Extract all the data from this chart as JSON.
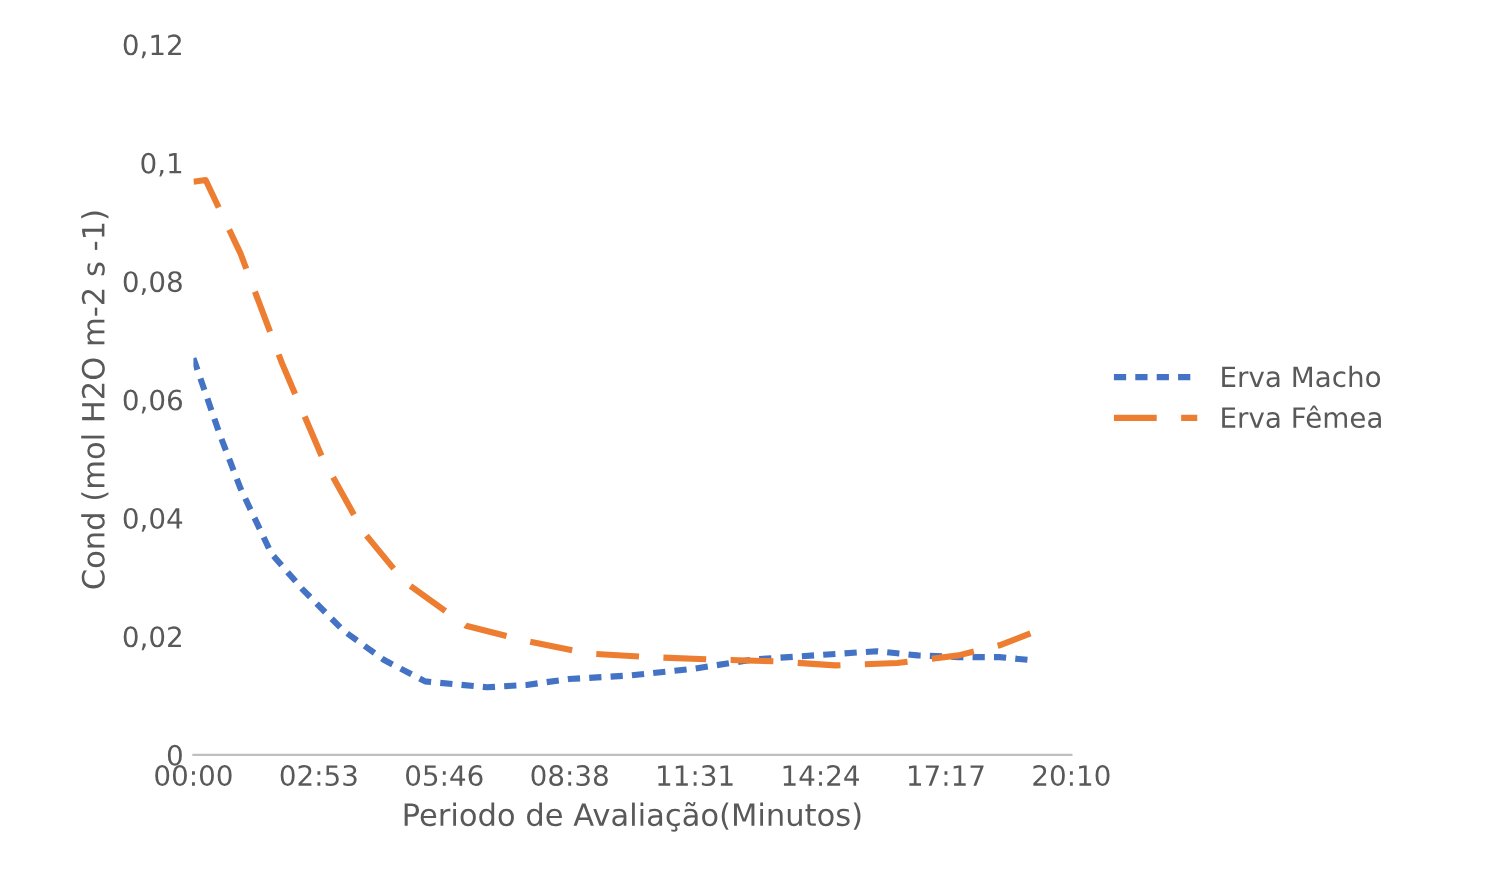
{
  "chart_data": {
    "type": "line",
    "xlabel": "Periodo de Avaliação(Minutos)",
    "ylabel": "Cond (mol H2O m-2 s -1)",
    "xlim": [
      0,
      20.16
    ],
    "xticks": [
      {
        "value": 0,
        "label": "00:00"
      },
      {
        "value": 2.88,
        "label": "02:53"
      },
      {
        "value": 5.76,
        "label": "05:46"
      },
      {
        "value": 8.64,
        "label": "08:38"
      },
      {
        "value": 11.52,
        "label": "11:31"
      },
      {
        "value": 14.4,
        "label": "14:24"
      },
      {
        "value": 17.28,
        "label": "17:17"
      },
      {
        "value": 20.16,
        "label": "20:10"
      }
    ],
    "ylim": [
      0,
      0.12
    ],
    "yticks": [
      0,
      {
        "value": 0.02,
        "label": "0,02"
      },
      {
        "value": 0.04,
        "label": "0,04"
      },
      {
        "value": 0.06,
        "label": "0,06"
      },
      {
        "value": 0.08,
        "label": "0,08"
      },
      {
        "value": 0.1,
        "label": "0,1"
      },
      {
        "value": 0.12,
        "label": "0,12"
      }
    ],
    "legend": "right",
    "grid": false,
    "series": [
      {
        "name": "Erva Macho",
        "color": "#4472c4",
        "line_style": "dotted",
        "x": [
          0,
          0.61,
          1.08,
          1.79,
          2.5,
          3.44,
          4.38,
          5.32,
          6.74,
          7.65,
          8.62,
          10.03,
          11.45,
          12.86,
          14.27,
          15.69,
          16.63,
          17.57,
          18.51,
          19.22
        ],
        "values": [
          0.067,
          0.054,
          0.045,
          0.034,
          0.028,
          0.021,
          0.016,
          0.0124,
          0.0114,
          0.0118,
          0.0128,
          0.0134,
          0.0145,
          0.0161,
          0.0168,
          0.0175,
          0.0168,
          0.0165,
          0.0165,
          0.016
        ]
      },
      {
        "name": "Erva Fêmea",
        "color": "#ed7d31",
        "line_style": "dashed",
        "x": [
          0,
          0.28,
          1.08,
          2.03,
          2.97,
          3.91,
          4.85,
          6.26,
          7.65,
          9.09,
          10.5,
          11.92,
          13.33,
          14.74,
          16.16,
          17.57,
          18.51,
          19.22
        ],
        "values": [
          0.0968,
          0.0971,
          0.0847,
          0.0662,
          0.05,
          0.0376,
          0.0292,
          0.0218,
          0.0192,
          0.0171,
          0.0165,
          0.0161,
          0.0158,
          0.0151,
          0.0155,
          0.0168,
          0.0185,
          0.0205
        ]
      }
    ]
  }
}
